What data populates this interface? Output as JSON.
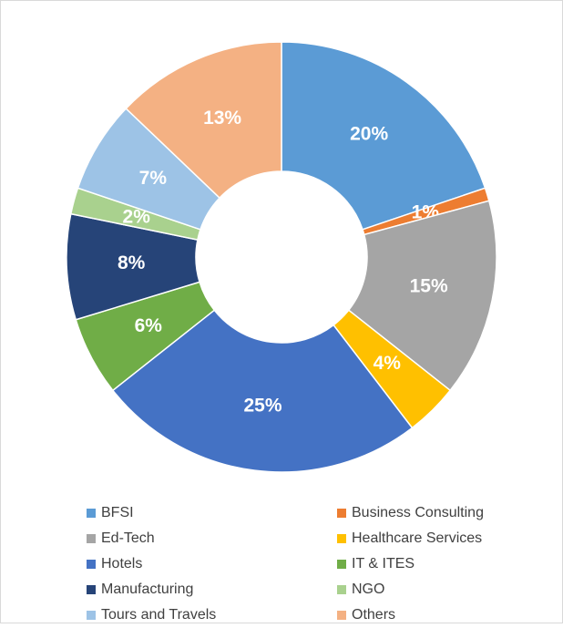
{
  "chart_data": {
    "type": "donut",
    "categories": [
      "BFSI",
      "Business Consulting",
      "Ed-Tech",
      "Healthcare Services",
      "Hotels",
      "IT & ITES",
      "Manufacturing",
      "NGO",
      "Tours and Travels",
      "Others"
    ],
    "values": [
      20,
      1,
      15,
      4,
      25,
      6,
      8,
      2,
      7,
      13
    ],
    "value_labels": [
      "20%",
      "1%",
      "15%",
      "4%",
      "25%",
      "6%",
      "8%",
      "2%",
      "7%",
      "13%"
    ],
    "colors": [
      "#5b9bd5",
      "#ed7d31",
      "#a5a5a5",
      "#ffc000",
      "#4472c4",
      "#70ad47",
      "#264478",
      "#a9d18e",
      "#9dc3e6",
      "#f4b183"
    ],
    "legend": "bottom"
  }
}
